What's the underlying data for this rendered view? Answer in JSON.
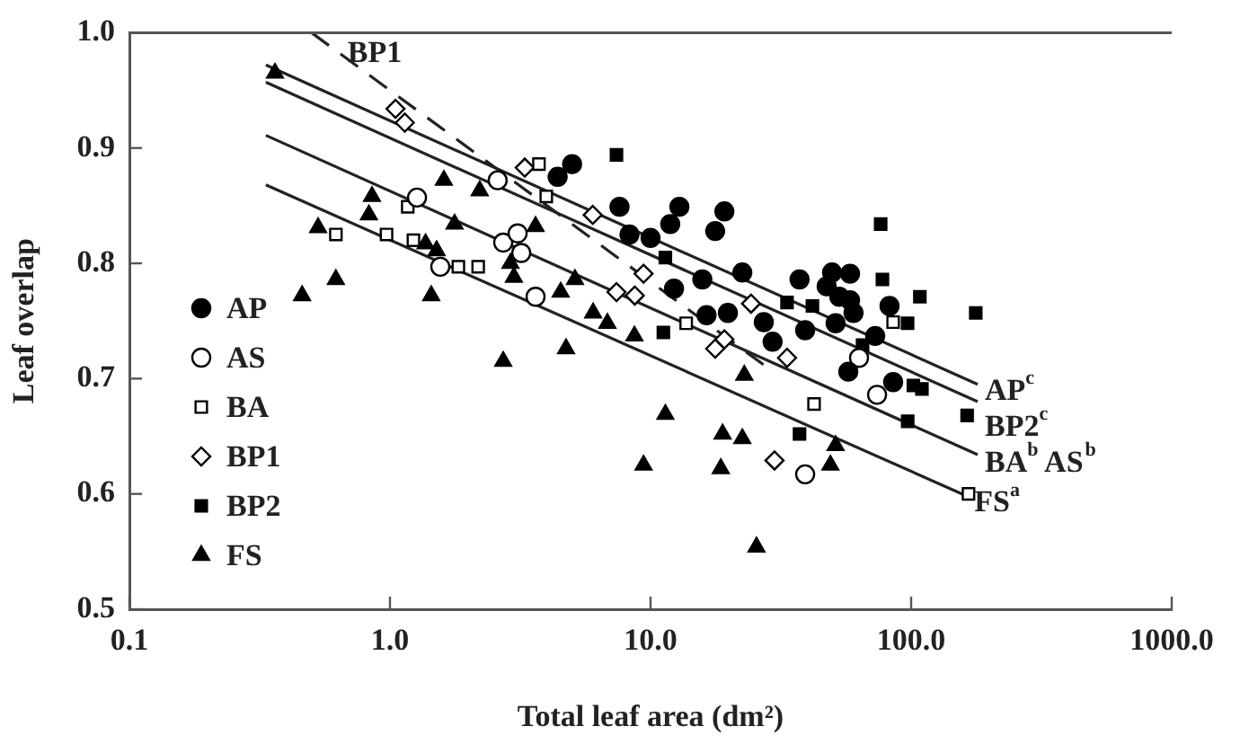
{
  "chart_data": {
    "type": "scatter",
    "xlabel": "Total leaf area (dm²)",
    "ylabel": "Leaf overlap",
    "log": "x",
    "xlim": [
      0.1,
      1000
    ],
    "xticks": [
      {
        "value": 0.1,
        "label": "0.1"
      },
      {
        "value": 1,
        "label": "1.0"
      },
      {
        "value": 10,
        "label": "10.0"
      },
      {
        "value": 100,
        "label": "100.0"
      },
      {
        "value": 1000,
        "label": "1000.0"
      }
    ],
    "ylim": [
      0.5,
      1.0
    ],
    "yticks": [
      {
        "value": 0.5,
        "label": "0.5"
      },
      {
        "value": 0.6,
        "label": "0.6"
      },
      {
        "value": 0.7,
        "label": "0.7"
      },
      {
        "value": 0.8,
        "label": "0.8"
      },
      {
        "value": 0.9,
        "label": "0.9"
      },
      {
        "value": 1.0,
        "label": "1.0"
      }
    ],
    "grid": false,
    "legend": "bottom left",
    "series": [
      {
        "name": "AP",
        "color": "#000000",
        "marker": "circle",
        "x": [
          4.4,
          5.0,
          7.6,
          12.9,
          11.9,
          19.2,
          17.7,
          8.3,
          10.0,
          12.3,
          15.8,
          22.5,
          37.3,
          47.4,
          49.7,
          58.3,
          53.0,
          58.3,
          60.1,
          82.6,
          39.2,
          51.3,
          27.2,
          19.8,
          16.4,
          29.4,
          72.8,
          57.4,
          85.3
        ],
        "values": [
          0.875,
          0.886,
          0.849,
          0.849,
          0.834,
          0.845,
          0.828,
          0.825,
          0.822,
          0.778,
          0.786,
          0.792,
          0.786,
          0.78,
          0.792,
          0.791,
          0.771,
          0.768,
          0.757,
          0.763,
          0.742,
          0.748,
          0.749,
          0.757,
          0.755,
          0.732,
          0.737,
          0.706,
          0.697
        ]
      },
      {
        "name": "AS",
        "color": "#ffffff",
        "marker": "circle",
        "x": [
          1.27,
          2.72,
          3.09,
          3.19,
          1.56,
          3.62,
          2.59,
          63.1,
          74.0,
          39.2
        ],
        "values": [
          0.857,
          0.818,
          0.826,
          0.809,
          0.797,
          0.771,
          0.872,
          0.718,
          0.686,
          0.617
        ]
      },
      {
        "name": "BA",
        "color": "#ffffff",
        "marker": "square",
        "x": [
          3.73,
          3.98,
          1.17,
          0.97,
          1.23,
          1.83,
          2.18,
          0.62,
          13.7,
          85.3,
          42.4,
          166
        ],
        "values": [
          0.886,
          0.858,
          0.849,
          0.825,
          0.82,
          0.797,
          0.797,
          0.825,
          0.748,
          0.749,
          0.678,
          0.6
        ]
      },
      {
        "name": "BP1",
        "color": "#ffffff",
        "marker": "diamond",
        "x": [
          1.05,
          1.14,
          3.29,
          6.0,
          9.4,
          7.4,
          8.7,
          24.3,
          19.2,
          17.7,
          33.4,
          29.9
        ],
        "values": [
          0.934,
          0.922,
          0.883,
          0.842,
          0.791,
          0.775,
          0.772,
          0.765,
          0.734,
          0.726,
          0.718,
          0.629
        ]
      },
      {
        "name": "BP2",
        "color": "#000000",
        "marker": "square",
        "x": [
          7.4,
          76.4,
          77.6,
          108,
          177,
          11.4,
          33.4,
          41.8,
          96.9,
          11.2,
          102,
          110,
          164,
          97,
          37.3,
          65.1
        ],
        "values": [
          0.894,
          0.834,
          0.786,
          0.771,
          0.757,
          0.805,
          0.766,
          0.763,
          0.748,
          0.74,
          0.694,
          0.691,
          0.668,
          0.663,
          0.652,
          0.729
        ]
      },
      {
        "name": "FS",
        "color": "#000000",
        "marker": "triangle",
        "x": [
          0.362,
          0.853,
          0.83,
          0.53,
          1.61,
          2.21,
          1.77,
          1.37,
          1.51,
          3.62,
          2.9,
          2.99,
          0.62,
          0.46,
          1.44,
          4.52,
          5.13,
          6.02,
          4.74,
          2.72,
          11.4,
          18.9,
          22.5,
          9.4,
          18.6,
          51.3,
          49.0,
          25.5,
          22.9,
          6.83,
          8.67
        ],
        "values": [
          0.965,
          0.858,
          0.842,
          0.831,
          0.872,
          0.863,
          0.834,
          0.817,
          0.811,
          0.832,
          0.8,
          0.788,
          0.786,
          0.772,
          0.772,
          0.775,
          0.786,
          0.757,
          0.726,
          0.715,
          0.669,
          0.652,
          0.648,
          0.625,
          0.622,
          0.642,
          0.625,
          0.554,
          0.703,
          0.748,
          0.737
        ]
      },
      {
        "name": "AP$^{c}$",
        "type": "line",
        "color": "#222222",
        "marker": "none",
        "x": [
          0.334,
          180
        ],
        "values": [
          0.972,
          0.695
        ]
      },
      {
        "name": "BP2$^{c}$",
        "type": "line",
        "color": "#222222",
        "marker": "none",
        "x": [
          0.334,
          180
        ],
        "values": [
          0.957,
          0.68
        ]
      },
      {
        "name": "BA$^{b}$ AS$^{b}$",
        "type": "line",
        "color": "#222222",
        "marker": "none",
        "x": [
          0.334,
          180
        ],
        "values": [
          0.911,
          0.634
        ]
      },
      {
        "name": "FS$^{a}$",
        "type": "line",
        "color": "#222222",
        "marker": "none",
        "x": [
          0.334,
          164
        ],
        "values": [
          0.868,
          0.598
        ]
      },
      {
        "name": "BP1",
        "type": "line",
        "color": "#222222",
        "marker": "none",
        "line_style": "dashed",
        "x": [
          0.5,
          29.5
        ],
        "values": [
          1.0,
          0.706
        ]
      }
    ]
  }
}
